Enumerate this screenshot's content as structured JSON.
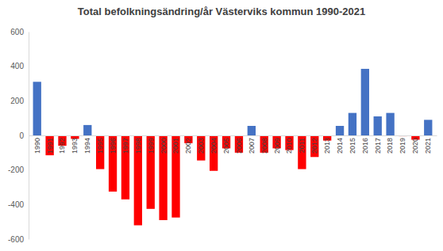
{
  "chart_data": {
    "type": "bar",
    "title": "Total befolkningsändring/år Västerviks kommun 1990-2021",
    "categories": [
      "1990",
      "1991",
      "1992",
      "1993",
      "1994",
      "1995",
      "1996",
      "1997",
      "1998",
      "1999",
      "2000",
      "2001",
      "2002",
      "2003",
      "2004",
      "2005",
      "2006",
      "2007",
      "2008",
      "2009",
      "2010",
      "2011",
      "2012",
      "2013",
      "2014",
      "2015",
      "2016",
      "2017",
      "2018",
      "2019",
      "2020",
      "2021"
    ],
    "values": [
      310,
      -115,
      -60,
      -20,
      60,
      -195,
      -325,
      -370,
      -520,
      -425,
      -490,
      -475,
      -45,
      -145,
      -205,
      -75,
      -100,
      55,
      -100,
      -75,
      -85,
      -195,
      -125,
      -30,
      55,
      130,
      385,
      110,
      130,
      -5,
      -25,
      90
    ],
    "colors": [
      "#4472c4",
      "#ff0000",
      "#ff0000",
      "#ff0000",
      "#4472c4",
      "#ff0000",
      "#ff0000",
      "#ff0000",
      "#ff0000",
      "#ff0000",
      "#ff0000",
      "#ff0000",
      "#ff0000",
      "#ff0000",
      "#ff0000",
      "#ff0000",
      "#ff0000",
      "#4472c4",
      "#ff0000",
      "#ff0000",
      "#ff0000",
      "#ff0000",
      "#ff0000",
      "#ff0000",
      "#4472c4",
      "#4472c4",
      "#4472c4",
      "#4472c4",
      "#4472c4",
      "#ff0000",
      "#ff0000",
      "#4472c4"
    ],
    "ylim": [
      -600,
      600
    ],
    "yticks": [
      -600,
      -400,
      -200,
      0,
      200,
      400,
      600
    ],
    "grid": false
  }
}
